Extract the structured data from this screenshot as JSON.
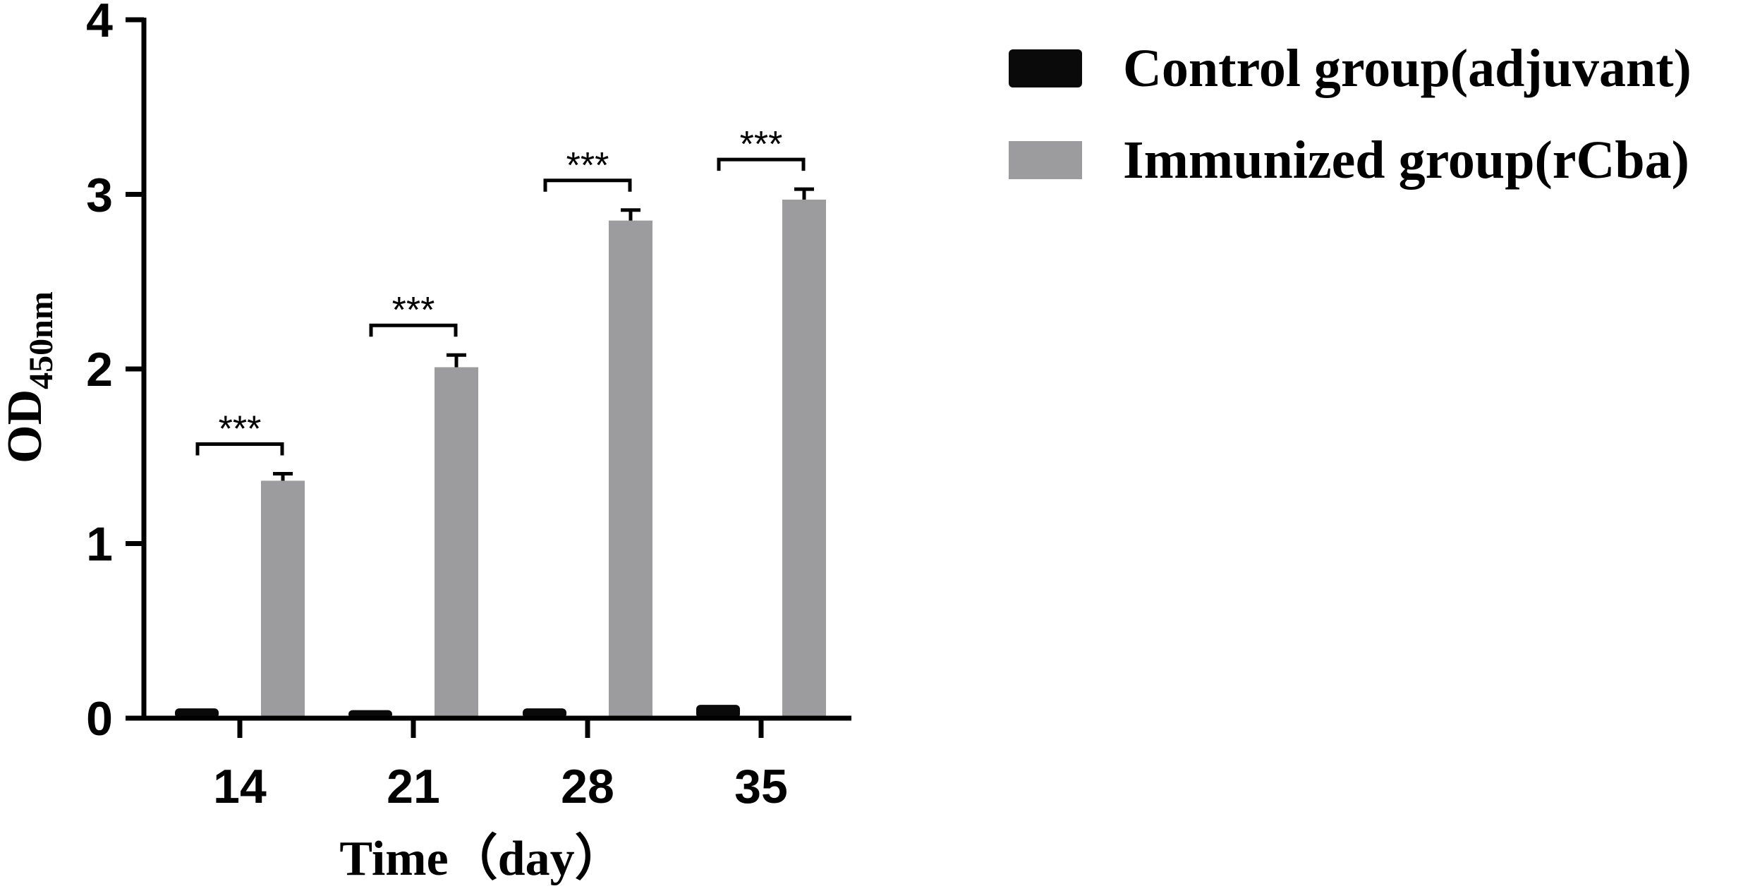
{
  "chart_data": {
    "type": "bar",
    "title": "",
    "xlabel": "Time（day）",
    "ylabel_main": "OD",
    "ylabel_sub": "450nm",
    "categories": [
      "14",
      "21",
      "28",
      "35"
    ],
    "ylim": [
      0,
      4
    ],
    "yticks": [
      "0",
      "1",
      "2",
      "3",
      "4"
    ],
    "series": [
      {
        "name": "Control group(adjuvant)",
        "color": "#0a0a0a",
        "values": [
          0.04,
          0.03,
          0.04,
          0.06
        ],
        "errors": [
          0.01,
          0.01,
          0.01,
          0.01
        ]
      },
      {
        "name": "Immunized group(rCba)",
        "color": "#9c9c9e",
        "values": [
          1.36,
          2.01,
          2.85,
          2.97
        ],
        "errors": [
          0.04,
          0.07,
          0.06,
          0.06
        ]
      }
    ],
    "significance": [
      "***",
      "***",
      "***",
      "***"
    ],
    "grid": false,
    "legend_position": "top-right"
  }
}
